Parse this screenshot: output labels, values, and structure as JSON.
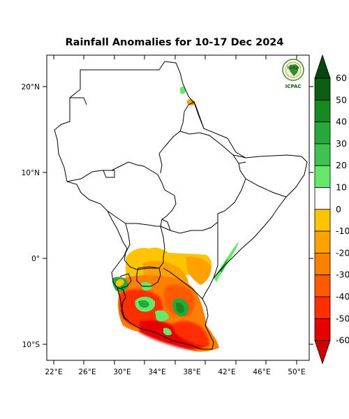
{
  "title": "Rainfall Anomalies for 10-17 Dec 2024",
  "logo": {
    "top_text": "IGAD",
    "bottom_text": "ICPAC"
  },
  "axes": {
    "lon_labels": [
      "22°E",
      "26°E",
      "30°E",
      "34°E",
      "38°E",
      "42°E",
      "46°E",
      "50°E"
    ],
    "lat_labels": [
      "20°N",
      "10°N",
      "0°",
      "10°S"
    ]
  },
  "colorbar": {
    "labels": [
      "60",
      "50",
      "40",
      "30",
      "20",
      "10",
      "0",
      "-10",
      "-20",
      "-30",
      "-40",
      "-50",
      "-60"
    ],
    "colors": [
      "#0b5e12",
      "#168a1e",
      "#27a83a",
      "#3fc250",
      "#66e86c",
      "#ffffff",
      "#ffc400",
      "#ffa200",
      "#ff7f00",
      "#ff5a00",
      "#ff2f00",
      "#e60000"
    ],
    "top_arrow_color": "#064710",
    "bottom_arrow_color": "#d10000"
  },
  "regions": {
    "negative_anomaly_colors": [
      "#ffc400",
      "#ffa200",
      "#ff7f00",
      "#ff5a00",
      "#ff2f00",
      "#e60000"
    ],
    "positive_anomaly_colors": [
      "#66e86c",
      "#27a83a",
      "#168a1e"
    ]
  }
}
